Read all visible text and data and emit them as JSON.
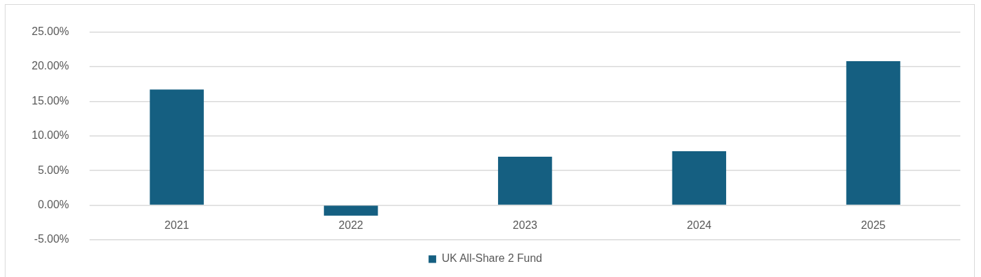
{
  "chart_data": {
    "type": "bar",
    "categories": [
      "2021",
      "2022",
      "2023",
      "2024",
      "2025"
    ],
    "series": [
      {
        "name": "UK All-Share 2 Fund",
        "color": "#155f81",
        "values": [
          16.7,
          -1.5,
          7.0,
          7.8,
          20.8
        ]
      }
    ],
    "ylim": [
      -5,
      25
    ],
    "yticks": [
      {
        "value": -5,
        "label": "-5.00%"
      },
      {
        "value": 0,
        "label": "0.00%"
      },
      {
        "value": 5,
        "label": "5.00%"
      },
      {
        "value": 10,
        "label": "10.00%"
      },
      {
        "value": 15,
        "label": "15.00%"
      },
      {
        "value": 20,
        "label": "20.00%"
      },
      {
        "value": 25,
        "label": "25.00%"
      }
    ],
    "grid": "y",
    "legend": "bottom"
  }
}
